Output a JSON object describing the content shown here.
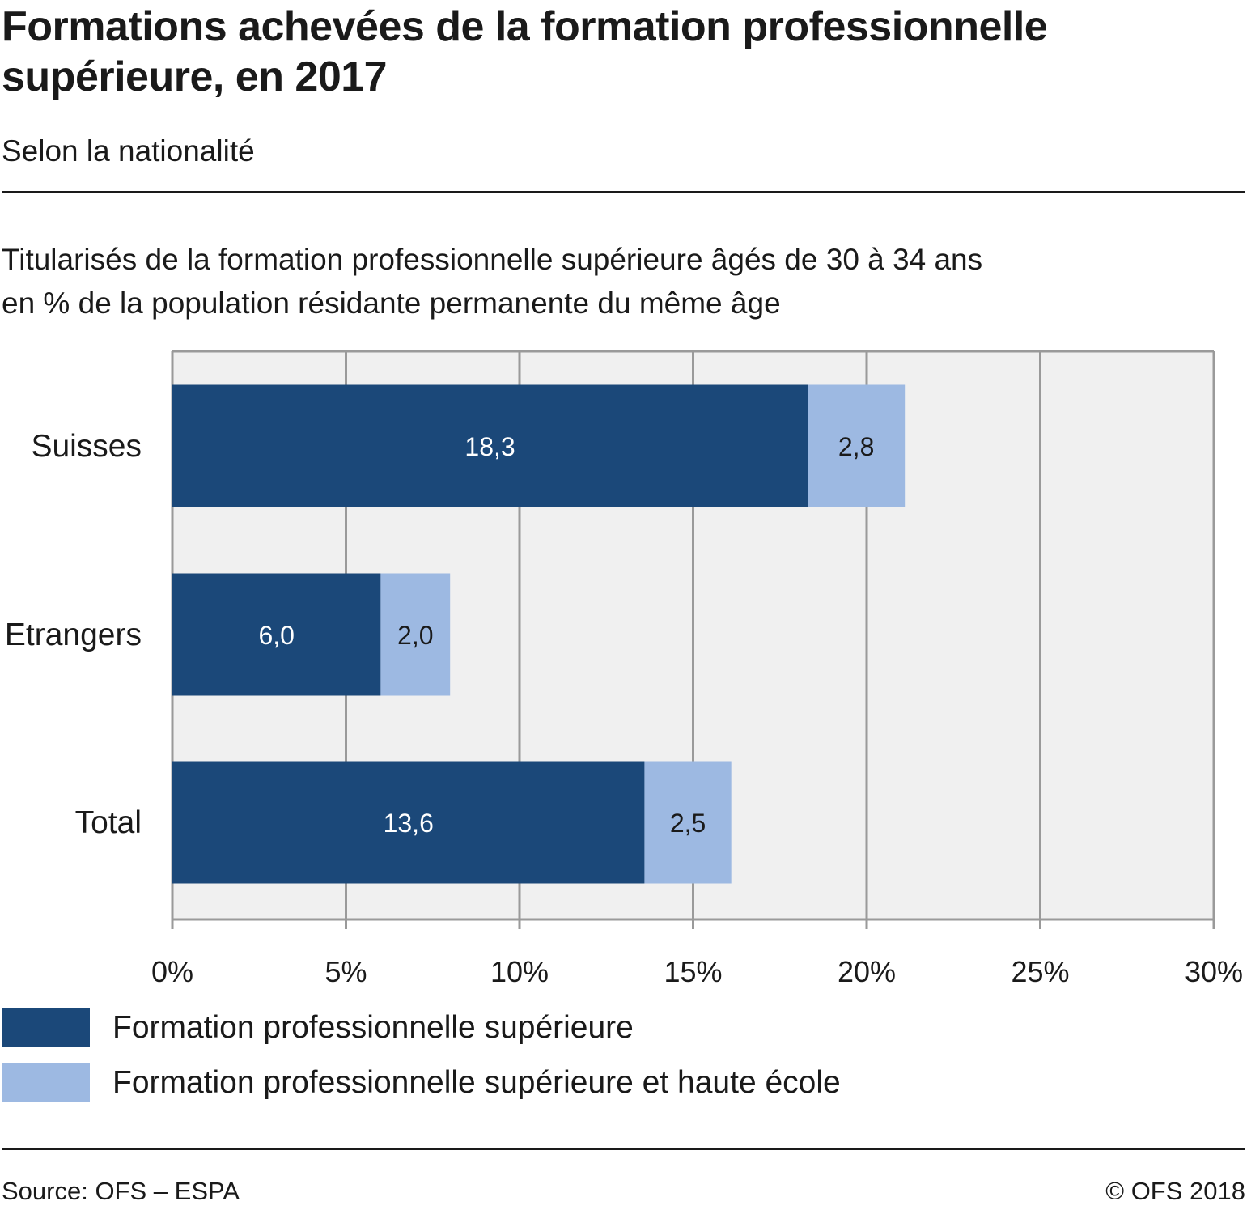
{
  "header": {
    "title": "Formations achevées de la formation professionnelle supérieure, en 2017",
    "subtitle": "Selon la nationalité",
    "measure_line1": "Titularisés de la formation professionnelle supérieure âgés de 30 à 34 ans",
    "measure_line2": "en % de la population résidante permanente du même âge"
  },
  "chart_data": {
    "type": "bar",
    "orientation": "horizontal",
    "stacked": true,
    "categories": [
      "Suisses",
      "Etrangers",
      "Total"
    ],
    "series": [
      {
        "name": "Formation professionnelle supérieure",
        "values": [
          18.3,
          6.0,
          13.6
        ],
        "labels": [
          "18,3",
          "6,0",
          "13,6"
        ],
        "color": "#1b4879"
      },
      {
        "name": "Formation professionnelle supérieure et haute école",
        "values": [
          2.8,
          2.0,
          2.5
        ],
        "labels": [
          "2,8",
          "2,0",
          "2,5"
        ],
        "color": "#9db9e2"
      }
    ],
    "xlim": [
      0,
      30
    ],
    "x_ticks": [
      0,
      5,
      10,
      15,
      20,
      25,
      30
    ],
    "x_tick_labels": [
      "0%",
      "5%",
      "10%",
      "15%",
      "20%",
      "25%",
      "30%"
    ],
    "grid": true,
    "plot_background": "#f0f0f0",
    "legend_position": "bottom-left"
  },
  "footer": {
    "source": "Source: OFS – ESPA",
    "copyright": "© OFS 2018"
  }
}
